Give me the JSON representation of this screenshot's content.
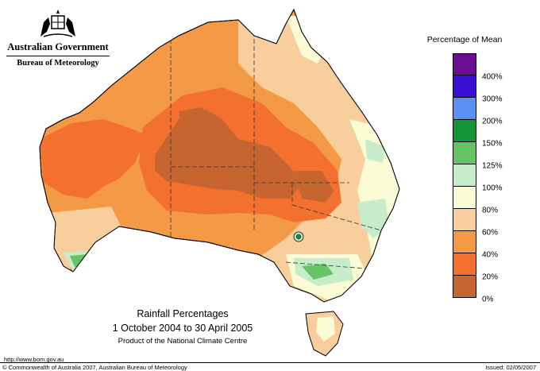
{
  "header": {
    "government": "Australian Government",
    "bureau": "Bureau of Meteorology"
  },
  "legend": {
    "title": "Percentage of Mean",
    "bands": [
      {
        "label": "",
        "color": "#6a0d91"
      },
      {
        "label": "400%",
        "color": "#3a0fd4"
      },
      {
        "label": "300%",
        "color": "#5b8ff0"
      },
      {
        "label": "200%",
        "color": "#15953a"
      },
      {
        "label": "150%",
        "color": "#66c467"
      },
      {
        "label": "125%",
        "color": "#c7ecc9"
      },
      {
        "label": "100%",
        "color": "#fbfbd6"
      },
      {
        "label": "80%",
        "color": "#f8cf9c"
      },
      {
        "label": "60%",
        "color": "#f49a47"
      },
      {
        "label": "40%",
        "color": "#f3702f"
      },
      {
        "label": "20%",
        "color": "#c76530"
      },
      {
        "label": "0%",
        "color": ""
      }
    ]
  },
  "map": {
    "title": "Rainfall Percentages",
    "dates": "1 October 2004 to 30 April 2005",
    "product": "Product of the National Climate Centre"
  },
  "footer": {
    "url": "http://www.bom.gov.au",
    "copyright": "© Commonwealth of Australia 2007, Australian Bureau of Meteorology",
    "issued": "Issued: 02/05/2007"
  },
  "colors": {
    "band_0_20": "#c76530",
    "band_20_40": "#f3702f",
    "band_40_60": "#f49a47",
    "band_60_80": "#f8cf9c",
    "band_80_100": "#fbfbd6",
    "band_100_125": "#c7ecc9",
    "band_125_150": "#66c467",
    "band_150_200": "#15953a"
  }
}
